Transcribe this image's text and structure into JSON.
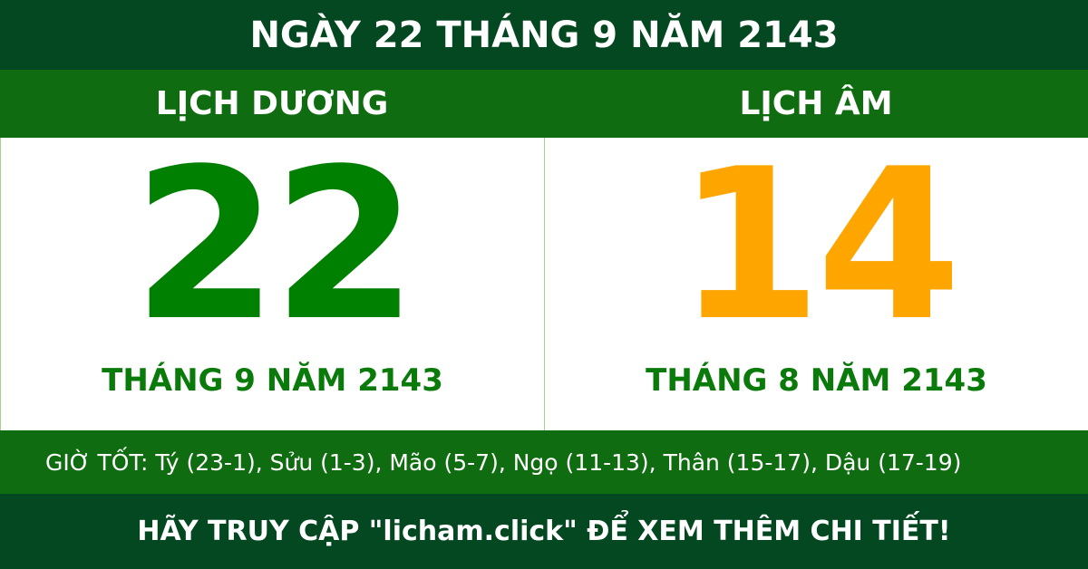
{
  "title": "NGÀY 22 THÁNG 9 NĂM 2143",
  "solar": {
    "label": "LỊCH DƯƠNG",
    "day": "22",
    "month_year": "THÁNG 9 NĂM 2143"
  },
  "lunar": {
    "label": "LỊCH ÂM",
    "day": "14",
    "month_year": "THÁNG 8 NĂM 2143"
  },
  "good_hours": "GIỜ TỐT: Tý (23-1), Sửu (1-3), Mão (5-7), Ngọ (11-13), Thân (15-17), Dậu (17-19)",
  "footer": "HÃY TRUY CẬP \"licham.click\" ĐỂ XEM THÊM CHI TIẾT!",
  "colors": {
    "dark_green": "#044822",
    "green": "#106c10",
    "solar_day": "#008000",
    "lunar_day": "#ffa500"
  }
}
